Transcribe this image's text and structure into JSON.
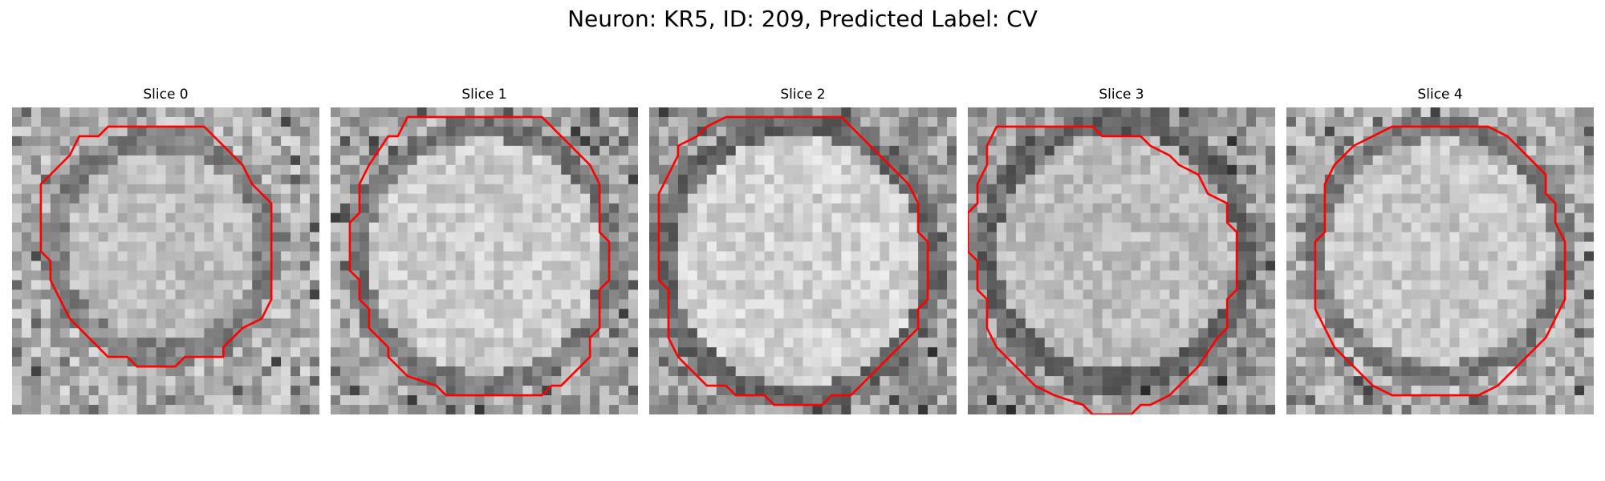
{
  "figure": {
    "title": "Neuron: KR5, ID: 209, Predicted Label: CV"
  },
  "panels": [
    {
      "title": "Slice 0"
    },
    {
      "title": "Slice 1"
    },
    {
      "title": "Slice 2"
    },
    {
      "title": "Slice 3"
    },
    {
      "title": "Slice 4"
    }
  ],
  "colors": {
    "contour": "#ff0000",
    "background": "#ffffff"
  }
}
